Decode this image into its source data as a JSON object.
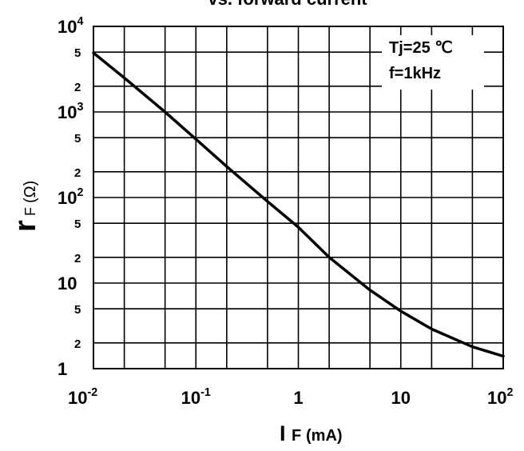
{
  "chart_data": {
    "type": "line",
    "title": "vs. forward current",
    "x_scale": "log",
    "y_scale": "log",
    "xlim": [
      0.01,
      100
    ],
    "ylim": [
      1,
      10000
    ],
    "grid": true,
    "xlabel": {
      "symbol": "I",
      "sub": "F",
      "unit": "(mA)"
    },
    "ylabel": {
      "symbol": "r",
      "sub": "F",
      "unit": "(Ω)"
    },
    "x_ticks": [
      {
        "value": 0.01,
        "base": "10",
        "exp": "-2"
      },
      {
        "value": 0.1,
        "base": "10",
        "exp": "-1"
      },
      {
        "value": 1,
        "base": "1",
        "exp": ""
      },
      {
        "value": 10,
        "base": "10",
        "exp": ""
      },
      {
        "value": 100,
        "base": "10",
        "exp": "2"
      }
    ],
    "y_major_ticks": [
      {
        "value": 10000,
        "base": "10",
        "exp": "4"
      },
      {
        "value": 1000,
        "base": "10",
        "exp": "3"
      },
      {
        "value": 100,
        "base": "10",
        "exp": "2"
      },
      {
        "value": 10,
        "base": "10",
        "exp": ""
      },
      {
        "value": 1,
        "base": "1",
        "exp": ""
      }
    ],
    "y_minor_labels": [
      {
        "value": 5000,
        "label": "5"
      },
      {
        "value": 2000,
        "label": "2"
      },
      {
        "value": 500,
        "label": "5"
      },
      {
        "value": 200,
        "label": "2"
      },
      {
        "value": 50,
        "label": "5"
      },
      {
        "value": 20,
        "label": "2"
      },
      {
        "value": 5,
        "label": "5"
      },
      {
        "value": 2,
        "label": "2"
      }
    ],
    "annotations": [
      "Tj=25  ℃",
      "f=1kHz"
    ],
    "series": [
      {
        "x": [
          0.01,
          0.02,
          0.05,
          0.1,
          0.2,
          0.5,
          1,
          2,
          5,
          10,
          20,
          50,
          100
        ],
        "y": [
          4900,
          2500,
          1000,
          480,
          230,
          90,
          45,
          20,
          8.3,
          4.7,
          2.9,
          1.8,
          1.4
        ]
      }
    ]
  }
}
